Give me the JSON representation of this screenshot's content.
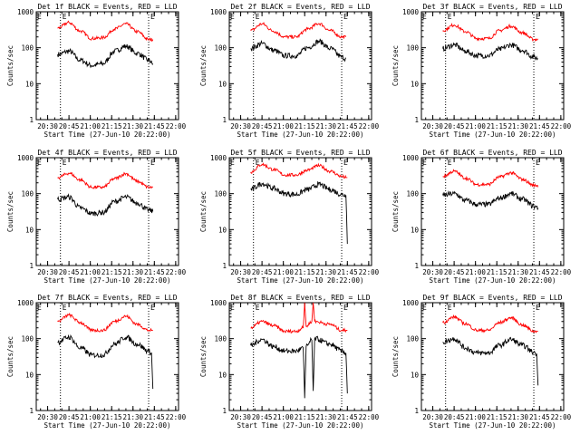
{
  "figure": {
    "ylabel": "Counts/sec",
    "xlabel": "Start Time (27-Jun-10 20:22:00)",
    "x_ticks": [
      "20:30",
      "20:45",
      "21:00",
      "21:15",
      "21:30",
      "21:45",
      "22:00"
    ],
    "y_ticks": [
      "1",
      "10",
      "100",
      "1000"
    ],
    "marker_left": "E",
    "marker_right": "E",
    "colors": {
      "events": "#000000",
      "lld": "#ff0000",
      "axes": "#000000"
    }
  },
  "chart_data": [
    {
      "type": "line",
      "title": "Det 1f BLACK = Events, RED = LLD",
      "xlim": [
        "20:22",
        "22:02"
      ],
      "ylim": [
        1,
        1000
      ],
      "ylog": true,
      "markers": [
        "20:39",
        "21:41"
      ],
      "x": [
        "20:37",
        "20:45",
        "20:53",
        "21:01",
        "21:09",
        "21:17",
        "21:25",
        "21:33",
        "21:41",
        "21:44"
      ],
      "series": [
        {
          "name": "Events",
          "values": [
            65,
            80,
            45,
            32,
            36,
            80,
            110,
            70,
            45,
            36
          ]
        },
        {
          "name": "LLD",
          "values": [
            350,
            500,
            290,
            180,
            190,
            330,
            460,
            280,
            170,
            170
          ]
        }
      ]
    },
    {
      "type": "line",
      "title": "Det 2f BLACK = Events, RED = LLD",
      "xlim": [
        "20:22",
        "22:02"
      ],
      "ylim": [
        1,
        1000
      ],
      "ylog": true,
      "markers": [
        "20:39",
        "21:41"
      ],
      "x": [
        "20:37",
        "20:45",
        "20:53",
        "21:01",
        "21:09",
        "21:17",
        "21:25",
        "21:33",
        "21:41",
        "21:44"
      ],
      "series": [
        {
          "name": "Events",
          "values": [
            95,
            130,
            85,
            60,
            60,
            100,
            150,
            95,
            55,
            50
          ]
        },
        {
          "name": "LLD",
          "values": [
            300,
            460,
            290,
            200,
            200,
            330,
            470,
            300,
            200,
            200
          ]
        }
      ]
    },
    {
      "type": "line",
      "title": "Det 3f BLACK = Events, RED = LLD",
      "xlim": [
        "20:22",
        "22:02"
      ],
      "ylim": [
        1,
        1000
      ],
      "ylog": true,
      "markers": [
        "20:39",
        "21:41"
      ],
      "x": [
        "20:37",
        "20:45",
        "20:53",
        "21:01",
        "21:09",
        "21:17",
        "21:25",
        "21:33",
        "21:41",
        "21:44"
      ],
      "series": [
        {
          "name": "Events",
          "values": [
            95,
            120,
            80,
            60,
            60,
            90,
            120,
            85,
            55,
            50
          ]
        },
        {
          "name": "LLD",
          "values": [
            300,
            430,
            280,
            180,
            180,
            300,
            400,
            260,
            170,
            170
          ]
        }
      ]
    },
    {
      "type": "line",
      "title": "Det 4f BLACK = Events, RED = LLD",
      "xlim": [
        "20:22",
        "22:02"
      ],
      "ylim": [
        1,
        1000
      ],
      "ylog": true,
      "markers": [
        "20:39",
        "21:41"
      ],
      "x": [
        "20:37",
        "20:45",
        "20:53",
        "21:01",
        "21:09",
        "21:17",
        "21:25",
        "21:33",
        "21:41",
        "21:44"
      ],
      "series": [
        {
          "name": "Events",
          "values": [
            70,
            80,
            40,
            28,
            30,
            60,
            80,
            55,
            35,
            32
          ]
        },
        {
          "name": "LLD",
          "values": [
            280,
            370,
            240,
            150,
            150,
            260,
            360,
            220,
            150,
            150
          ]
        }
      ]
    },
    {
      "type": "line",
      "title": "Det 5f BLACK = Events, RED = LLD",
      "xlim": [
        "20:22",
        "22:02"
      ],
      "ylim": [
        1,
        1000
      ],
      "ylog": true,
      "markers": [
        "20:39",
        "21:41"
      ],
      "x": [
        "20:37",
        "20:45",
        "20:53",
        "21:01",
        "21:09",
        "21:17",
        "21:25",
        "21:33",
        "21:41",
        "21:44",
        "21:45"
      ],
      "series": [
        {
          "name": "Events",
          "values": [
            130,
            190,
            140,
            100,
            95,
            130,
            180,
            130,
            95,
            90,
            4
          ]
        },
        {
          "name": "LLD",
          "values": [
            400,
            650,
            470,
            330,
            330,
            450,
            600,
            420,
            300,
            280,
            280
          ]
        }
      ]
    },
    {
      "type": "line",
      "title": "Det 6f BLACK = Events, RED = LLD",
      "xlim": [
        "20:22",
        "22:02"
      ],
      "ylim": [
        1,
        1000
      ],
      "ylog": true,
      "markers": [
        "20:39",
        "21:41"
      ],
      "x": [
        "20:37",
        "20:45",
        "20:53",
        "21:01",
        "21:09",
        "21:17",
        "21:25",
        "21:33",
        "21:41",
        "21:44"
      ],
      "series": [
        {
          "name": "Events",
          "values": [
            90,
            100,
            65,
            50,
            50,
            75,
            100,
            70,
            45,
            40
          ]
        },
        {
          "name": "LLD",
          "values": [
            300,
            420,
            270,
            180,
            180,
            290,
            380,
            250,
            170,
            170
          ]
        }
      ]
    },
    {
      "type": "line",
      "title": "Det 7f BLACK = Events, RED = LLD",
      "xlim": [
        "20:22",
        "22:02"
      ],
      "ylim": [
        1,
        1000
      ],
      "ylog": true,
      "markers": [
        "20:39",
        "21:41"
      ],
      "x": [
        "20:37",
        "20:45",
        "20:53",
        "21:01",
        "21:09",
        "21:17",
        "21:25",
        "21:33",
        "21:41",
        "21:43",
        "21:44"
      ],
      "series": [
        {
          "name": "Events",
          "values": [
            80,
            110,
            55,
            35,
            35,
            70,
            110,
            70,
            45,
            40,
            4
          ]
        },
        {
          "name": "LLD",
          "values": [
            300,
            450,
            280,
            170,
            170,
            300,
            420,
            250,
            170,
            170,
            170
          ]
        }
      ]
    },
    {
      "type": "line",
      "title": "Det 8f BLACK = Events, RED = LLD",
      "xlim": [
        "20:22",
        "22:02"
      ],
      "ylim": [
        1,
        1000
      ],
      "ylog": true,
      "markers": [
        "20:39",
        "21:41"
      ],
      "x": [
        "20:37",
        "20:45",
        "20:53",
        "21:01",
        "21:09",
        "21:14",
        "21:15",
        "21:16",
        "21:20",
        "21:21",
        "21:22",
        "21:33",
        "21:41",
        "21:44",
        "21:45"
      ],
      "series": [
        {
          "name": "Events",
          "values": [
            65,
            95,
            60,
            45,
            45,
            55,
            2.2,
            60,
            90,
            3.5,
            100,
            70,
            45,
            40,
            3
          ]
        },
        {
          "name": "LLD",
          "values": [
            200,
            300,
            230,
            160,
            160,
            200,
            1000,
            220,
            300,
            1000,
            300,
            250,
            170,
            170,
            170
          ]
        }
      ]
    },
    {
      "type": "line",
      "title": "Det 9f BLACK = Events, RED = LLD",
      "xlim": [
        "20:22",
        "22:02"
      ],
      "ylim": [
        1,
        1000
      ],
      "ylog": true,
      "markers": [
        "20:39",
        "21:41"
      ],
      "x": [
        "20:37",
        "20:45",
        "20:53",
        "21:01",
        "21:09",
        "21:17",
        "21:25",
        "21:33",
        "21:41",
        "21:43",
        "21:44"
      ],
      "series": [
        {
          "name": "Events",
          "values": [
            80,
            100,
            55,
            40,
            40,
            65,
            95,
            65,
            42,
            38,
            5
          ]
        },
        {
          "name": "LLD",
          "values": [
            280,
            400,
            260,
            170,
            170,
            280,
            380,
            240,
            160,
            160,
            160
          ]
        }
      ]
    }
  ]
}
